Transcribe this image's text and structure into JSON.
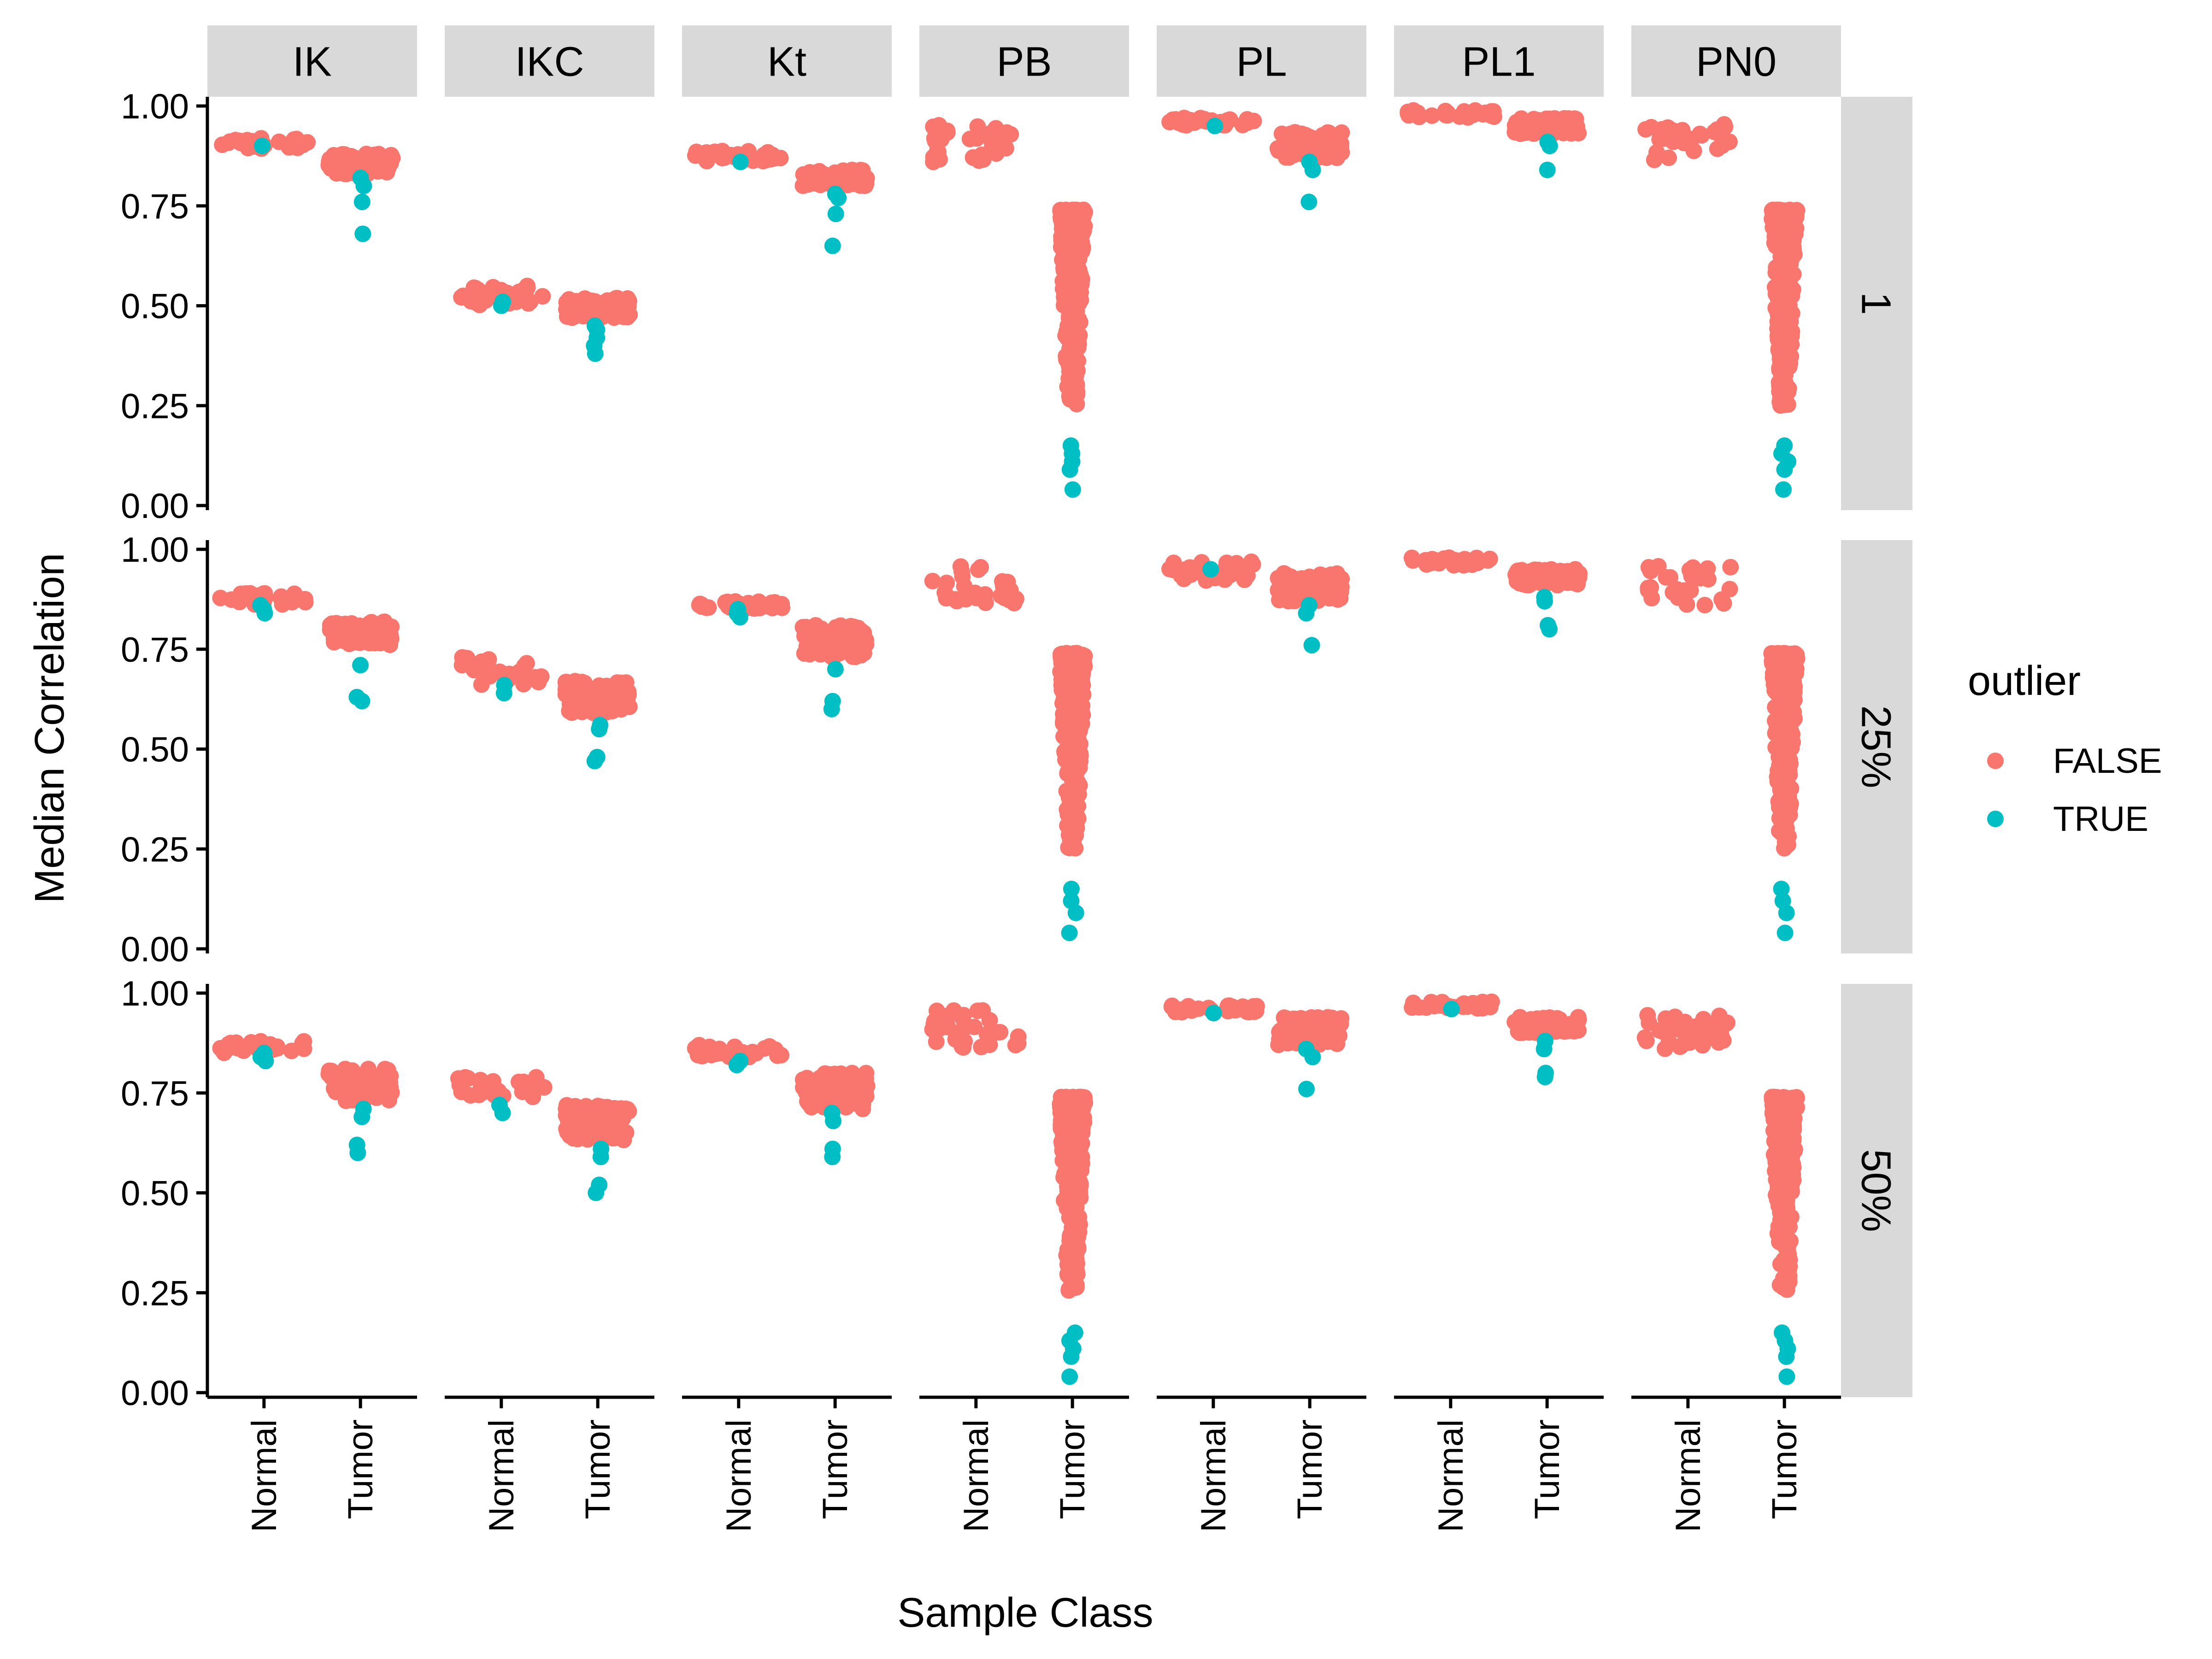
{
  "chart_data": {
    "type": "scatter",
    "xlabel": "Sample Class",
    "ylabel": "Median Correlation",
    "columns": [
      "IK",
      "IKC",
      "Kt",
      "PB",
      "PL",
      "PL1",
      "PN0"
    ],
    "rows": [
      "1",
      "25%",
      "50%"
    ],
    "categories": [
      "Normal",
      "Tumor"
    ],
    "yticks": [
      "0.00",
      "0.25",
      "0.50",
      "0.75",
      "1.00"
    ],
    "ylim": [
      0,
      1.0
    ],
    "legend": {
      "title": "outlier",
      "position": "right",
      "entries": [
        {
          "label": "FALSE",
          "color": "#F8766D"
        },
        {
          "label": "TRUE",
          "color": "#00BFC4"
        }
      ]
    },
    "grid": false,
    "summary_note": "Each group lists the min/max of non-outlier (FALSE) points and the outlier (TRUE) values; arrays: panels[row][column][category].",
    "panels": [
      [
        [
          {
            "false_range": [
              0.89,
              0.92
            ],
            "true": [
              0.9
            ]
          },
          {
            "false_range": [
              0.83,
              0.88
            ],
            "true": [
              0.68,
              0.76,
              0.8,
              0.82
            ]
          }
        ],
        [
          {
            "false_range": [
              0.5,
              0.55
            ],
            "true": [
              0.5,
              0.51
            ]
          },
          {
            "false_range": [
              0.47,
              0.52
            ],
            "true": [
              0.38,
              0.4,
              0.42,
              0.44,
              0.45
            ]
          }
        ],
        [
          {
            "false_range": [
              0.86,
              0.89
            ],
            "true": [
              0.86
            ]
          },
          {
            "false_range": [
              0.8,
              0.84
            ],
            "true": [
              0.65,
              0.73,
              0.77,
              0.78
            ]
          }
        ],
        [
          {
            "false_range": [
              0.86,
              0.96
            ],
            "true": []
          },
          {
            "false_range": [
              0.25,
              0.74
            ],
            "true": [
              0.04,
              0.09,
              0.11,
              0.13,
              0.15
            ]
          }
        ],
        [
          {
            "false_range": [
              0.95,
              0.97
            ],
            "true": [
              0.95
            ]
          },
          {
            "false_range": [
              0.87,
              0.94
            ],
            "true": [
              0.76,
              0.84,
              0.86
            ]
          }
        ],
        [
          {
            "false_range": [
              0.97,
              0.99
            ],
            "true": []
          },
          {
            "false_range": [
              0.93,
              0.97
            ],
            "true": [
              0.84,
              0.9,
              0.91
            ]
          }
        ],
        [
          {
            "false_range": [
              0.86,
              0.96
            ],
            "true": []
          },
          {
            "false_range": [
              0.25,
              0.74
            ],
            "true": [
              0.04,
              0.09,
              0.11,
              0.13,
              0.15
            ]
          }
        ]
      ],
      [
        [
          {
            "false_range": [
              0.86,
              0.89
            ],
            "true": [
              0.84,
              0.85,
              0.86
            ]
          },
          {
            "false_range": [
              0.76,
              0.82
            ],
            "true": [
              0.62,
              0.63,
              0.71
            ]
          }
        ],
        [
          {
            "false_range": [
              0.66,
              0.73
            ],
            "true": [
              0.64,
              0.66
            ]
          },
          {
            "false_range": [
              0.59,
              0.67
            ],
            "true": [
              0.47,
              0.48,
              0.55,
              0.56
            ]
          }
        ],
        [
          {
            "false_range": [
              0.85,
              0.87
            ],
            "true": [
              0.83,
              0.84,
              0.85
            ]
          },
          {
            "false_range": [
              0.73,
              0.81
            ],
            "true": [
              0.6,
              0.62,
              0.7
            ]
          }
        ],
        [
          {
            "false_range": [
              0.86,
              0.96
            ],
            "true": []
          },
          {
            "false_range": [
              0.25,
              0.74
            ],
            "true": [
              0.04,
              0.09,
              0.12,
              0.15
            ]
          }
        ],
        [
          {
            "false_range": [
              0.92,
              0.97
            ],
            "true": [
              0.95
            ]
          },
          {
            "false_range": [
              0.87,
              0.94
            ],
            "true": [
              0.76,
              0.84,
              0.86
            ]
          }
        ],
        [
          {
            "false_range": [
              0.96,
              0.98
            ],
            "true": []
          },
          {
            "false_range": [
              0.91,
              0.95
            ],
            "true": [
              0.8,
              0.81,
              0.87,
              0.88
            ]
          }
        ],
        [
          {
            "false_range": [
              0.86,
              0.96
            ],
            "true": []
          },
          {
            "false_range": [
              0.25,
              0.74
            ],
            "true": [
              0.04,
              0.09,
              0.12,
              0.15
            ]
          }
        ]
      ],
      [
        [
          {
            "false_range": [
              0.85,
              0.88
            ],
            "true": [
              0.83,
              0.84,
              0.85
            ]
          },
          {
            "false_range": [
              0.73,
              0.81
            ],
            "true": [
              0.6,
              0.62,
              0.69,
              0.71
            ]
          }
        ],
        [
          {
            "false_range": [
              0.74,
              0.79
            ],
            "true": [
              0.7,
              0.72
            ]
          },
          {
            "false_range": [
              0.63,
              0.72
            ],
            "true": [
              0.5,
              0.52,
              0.59,
              0.61
            ]
          }
        ],
        [
          {
            "false_range": [
              0.84,
              0.87
            ],
            "true": [
              0.82,
              0.83
            ]
          },
          {
            "false_range": [
              0.71,
              0.8
            ],
            "true": [
              0.59,
              0.61,
              0.68,
              0.7
            ]
          }
        ],
        [
          {
            "false_range": [
              0.86,
              0.96
            ],
            "true": []
          },
          {
            "false_range": [
              0.25,
              0.74
            ],
            "true": [
              0.04,
              0.09,
              0.11,
              0.13,
              0.15
            ]
          }
        ],
        [
          {
            "false_range": [
              0.95,
              0.97
            ],
            "true": [
              0.95
            ]
          },
          {
            "false_range": [
              0.87,
              0.94
            ],
            "true": [
              0.76,
              0.84,
              0.86
            ]
          }
        ],
        [
          {
            "false_range": [
              0.96,
              0.98
            ],
            "true": [
              0.96
            ]
          },
          {
            "false_range": [
              0.9,
              0.94
            ],
            "true": [
              0.79,
              0.8,
              0.86,
              0.88
            ]
          }
        ],
        [
          {
            "false_range": [
              0.86,
              0.96
            ],
            "true": []
          },
          {
            "false_range": [
              0.25,
              0.74
            ],
            "true": [
              0.04,
              0.09,
              0.11,
              0.13,
              0.15
            ]
          }
        ]
      ]
    ]
  }
}
